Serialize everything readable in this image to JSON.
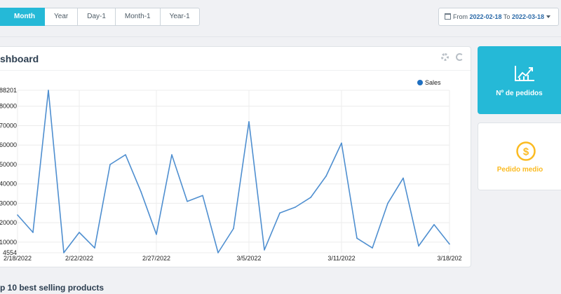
{
  "period_tabs": [
    "Month",
    "Year",
    "Day-1",
    "Month-1",
    "Year-1"
  ],
  "active_tab": "Month",
  "date_range": {
    "from_label": "From",
    "from": "2022-02-18",
    "to_label": "To",
    "to": "2022-03-18"
  },
  "panel": {
    "title": "shboard"
  },
  "kpis": {
    "orders": {
      "label": "Nº de pedidos",
      "icon": "chart-up-icon"
    },
    "average": {
      "label": "Pedido medio",
      "icon": "dollar-coin-icon"
    }
  },
  "bottom_title": "p 10 best selling products",
  "colors": {
    "accent": "#25b9d7",
    "line": "#4f8fd0",
    "avg": "#fbbb22"
  },
  "chart_data": {
    "type": "line",
    "series": [
      {
        "name": "Sales",
        "values": [
          24000,
          15000,
          88201,
          4554,
          15000,
          7000,
          50000,
          55000,
          36000,
          14000,
          55000,
          31000,
          34000,
          4554,
          17000,
          72000,
          6000,
          25000,
          28000,
          33000,
          44000,
          61000,
          12000,
          7000,
          30000,
          43000,
          8000,
          19000,
          9000
        ]
      }
    ],
    "x_tick_labels": [
      "2/18/2022",
      "2/22/2022",
      "2/27/2022",
      "3/5/2022",
      "3/11/2022",
      "3/18/202"
    ],
    "x_tick_indices": [
      0,
      4,
      9,
      15,
      21,
      28
    ],
    "y_tick_labels": [
      "88201",
      "80000",
      "70000",
      "60000",
      "50000",
      "40000",
      "30000",
      "20000",
      "10000",
      "4554"
    ],
    "y_tick_values": [
      88201,
      80000,
      70000,
      60000,
      50000,
      40000,
      30000,
      20000,
      10000,
      4554
    ],
    "ylim": [
      4554,
      88201
    ],
    "grid": true,
    "legend": "top-right"
  }
}
